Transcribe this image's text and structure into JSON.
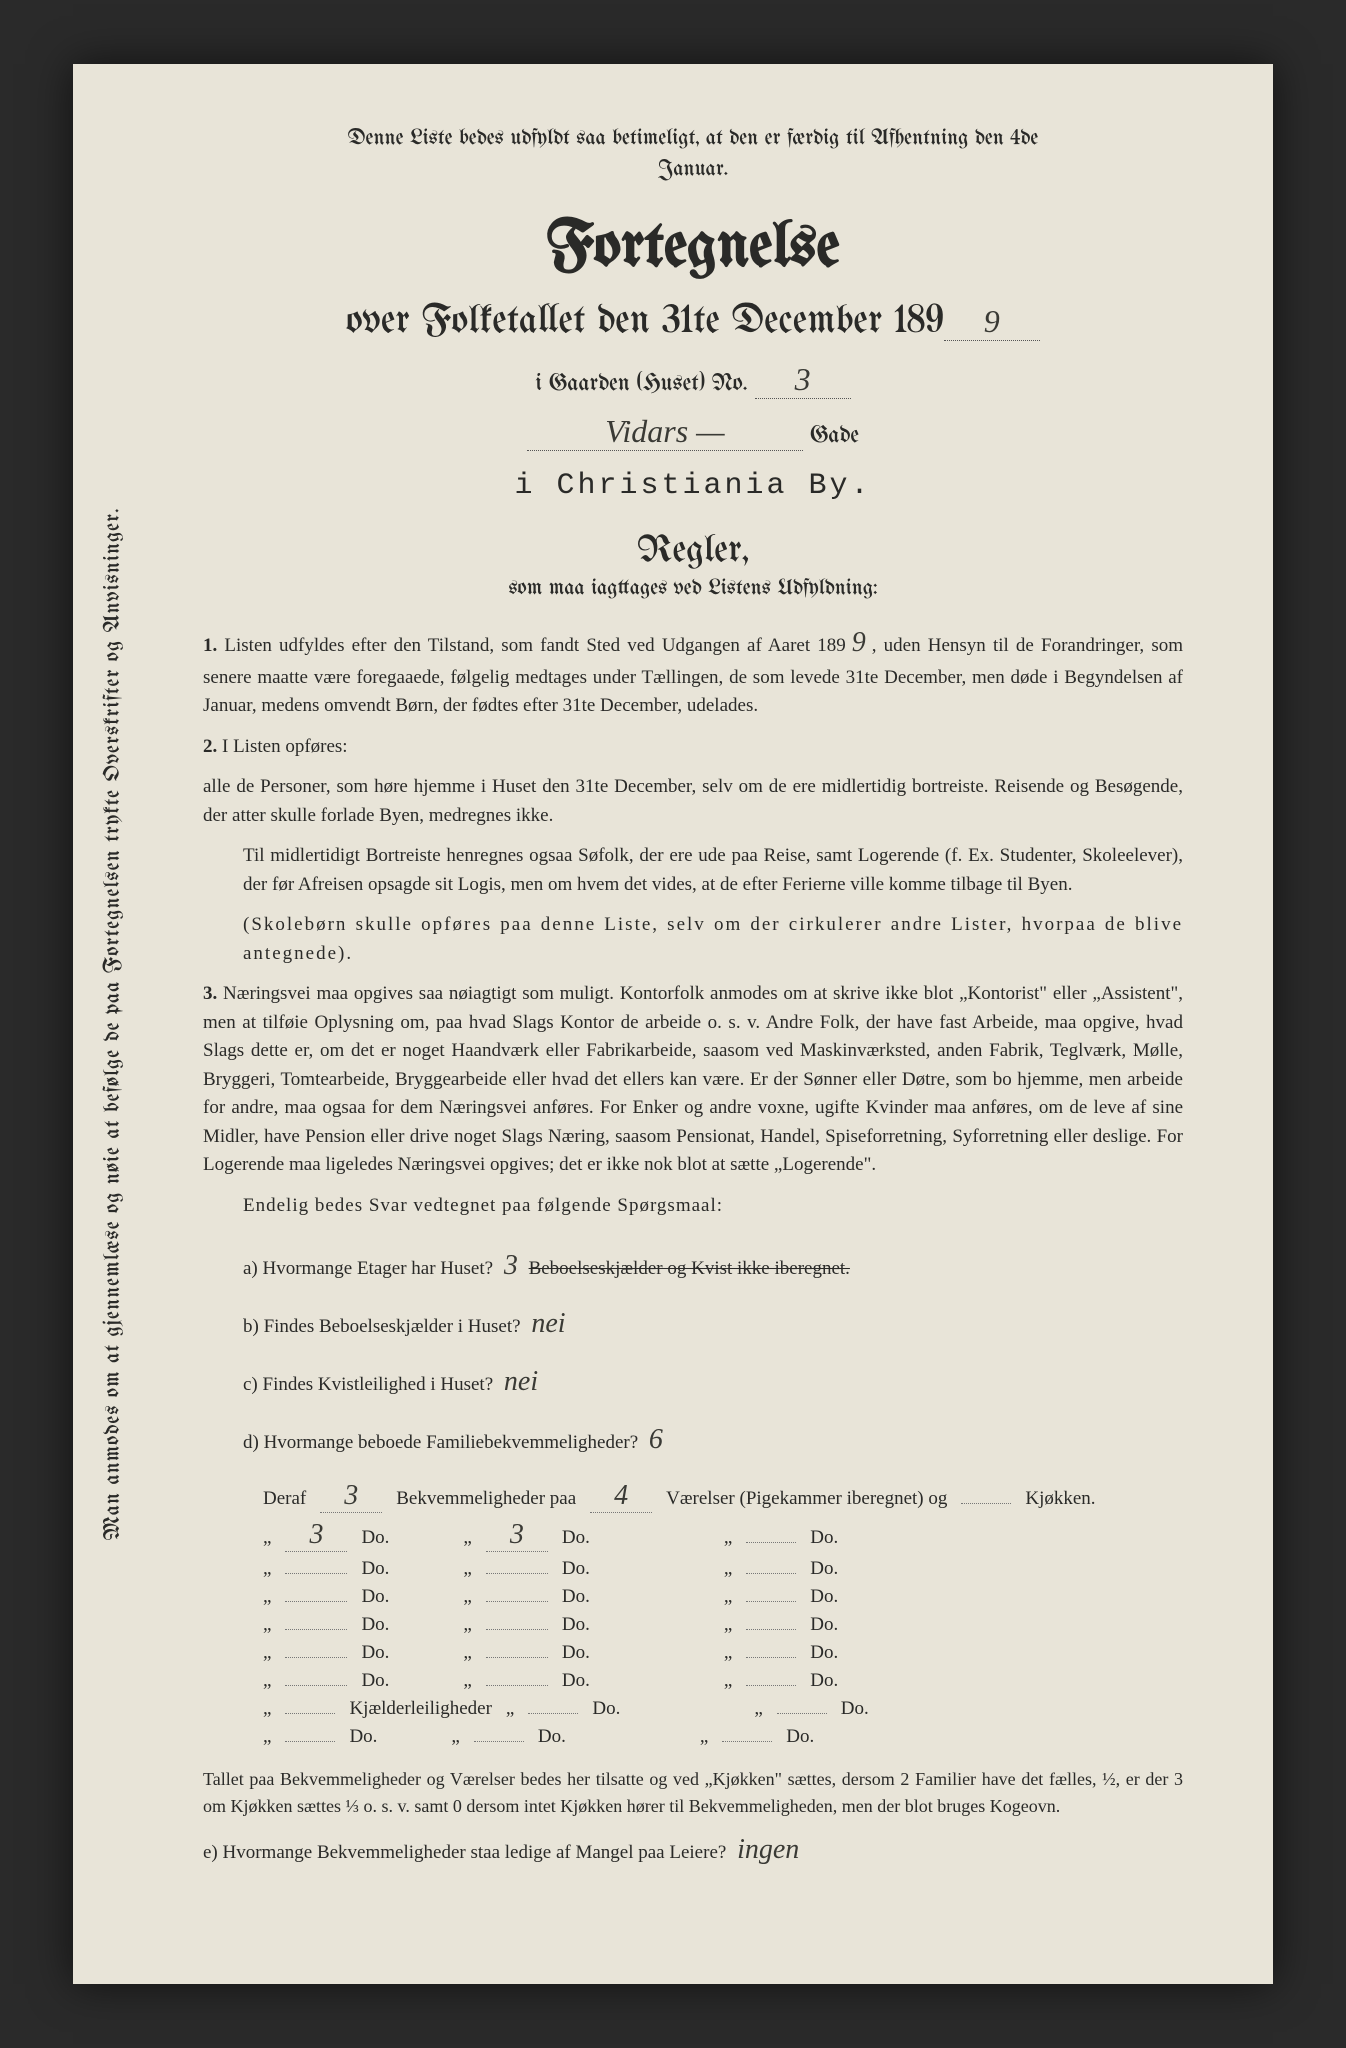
{
  "sideText": "Man anmodes om at gjennemlæse og nøie at befølge de paa Fortegnelsen trykte Overskrifter og Anvisninger.",
  "topNote": "Denne Liste bedes udfyldt saa betimeligt, at den er færdig til Afhentning den 4de Januar.",
  "title": "Fortegnelse",
  "subtitle": "over Folketallet den 31te December 189",
  "yearDigit": "9",
  "houseLabel": "i Gaarden (Huset) No.",
  "houseNo": "3",
  "streetName": "Vidars —",
  "streetSuffix": "Gade",
  "cityLine": "i Christiania By.",
  "reglerTitle": "Regler,",
  "reglerSub": "som maa iagttages ved Listens Udfyldning:",
  "rule1": "Listen udfyldes efter den Tilstand, som fandt Sted ved Udgangen af Aaret 189",
  "rule1year": "9",
  "rule1b": ", uden Hensyn til de Forandringer, som senere maatte være foregaaede, følgelig medtages under Tællingen, de som levede 31te December, men døde i Begyndelsen af Januar, medens omvendt Børn, der fødtes efter 31te December, udelades.",
  "rule2a": "I Listen opføres:",
  "rule2b": "alle de Personer, som høre hjemme i Huset den 31te December, selv om de ere midlertidig bortreiste. Reisende og Besøgende, der atter skulle forlade Byen, medregnes ikke.",
  "rule2para1": "Til midlertidigt Bortreiste henregnes ogsaa Søfolk, der ere ude paa Reise, samt Logerende (f. Ex. Studenter, Skoleelever), der før Afreisen opsagde sit Logis, men om hvem det vides, at de efter Ferierne ville komme tilbage til Byen.",
  "rule2para2": "(Skolebørn skulle opføres paa denne Liste, selv om der cirkulerer andre Lister, hvorpaa de blive antegnede).",
  "rule3": "Næringsvei maa opgives saa nøiagtigt som muligt. Kontorfolk anmodes om at skrive ikke blot „Kontorist\" eller „Assistent\", men at tilføie Oplysning om, paa hvad Slags Kontor de arbeide o. s. v. Andre Folk, der have fast Arbeide, maa opgive, hvad Slags dette er, om det er noget Haandværk eller Fabrikarbeide, saasom ved Maskinværksted, anden Fabrik, Teglværk, Mølle, Bryggeri, Tomtearbeide, Bryggearbeide eller hvad det ellers kan være. Er der Sønner eller Døtre, som bo hjemme, men arbeide for andre, maa ogsaa for dem Næringsvei anføres. For Enker og andre voxne, ugifte Kvinder maa anføres, om de leve af sine Midler, have Pension eller drive noget Slags Næring, saasom Pensionat, Handel, Spiseforretning, Syforretning eller deslige. For Logerende maa ligeledes Næringsvei opgives; det er ikke nok blot at sætte „Logerende\".",
  "questionsHeader": "Endelig bedes Svar vedtegnet paa følgende Spørgsmaal:",
  "qa": {
    "a_label": "a) Hvormange Etager har Huset?",
    "a_ans": "3",
    "a_note": "Beboelseskjælder og Kvist ikke iberegnet.",
    "b_label": "b) Findes Beboelseskjælder i Huset?",
    "b_ans": "nei",
    "c_label": "c) Findes Kvistleilighed i Huset?",
    "c_ans": "nei",
    "d_label": "d) Hvormange beboede Familiebekvemmeligheder?",
    "d_ans": "6"
  },
  "dwellings": {
    "headerPrefix": "Deraf",
    "headerCount": "3",
    "headerMid": "Bekvemmeligheder paa",
    "headerRooms": "4",
    "headerSuffix": "Værelser (Pigekammer iberegnet) og",
    "headerKitchen": "",
    "headerEnd": "Kjøkken.",
    "rows": [
      {
        "c1": "3",
        "c2": "3"
      },
      {
        "c1": "",
        "c2": ""
      },
      {
        "c1": "",
        "c2": ""
      },
      {
        "c1": "",
        "c2": ""
      },
      {
        "c1": "",
        "c2": ""
      },
      {
        "c1": "",
        "c2": ""
      }
    ],
    "kjLabel": "Kjælderleiligheder",
    "lastLabel": "Do."
  },
  "bottomPara": "Tallet paa Bekvemmeligheder og Værelser bedes her tilsatte og ved „Kjøkken\" sættes, dersom 2 Familier have det fælles, ½, er der 3 om Kjøkken sættes ⅓ o. s. v. samt 0 dersom intet Kjøkken hører til Bekvemmeligheden, men der blot bruges Kogeovn.",
  "finalQ": "e) Hvormange Bekvemmeligheder staa ledige af Mangel paa Leiere?",
  "finalAns": "ingen"
}
